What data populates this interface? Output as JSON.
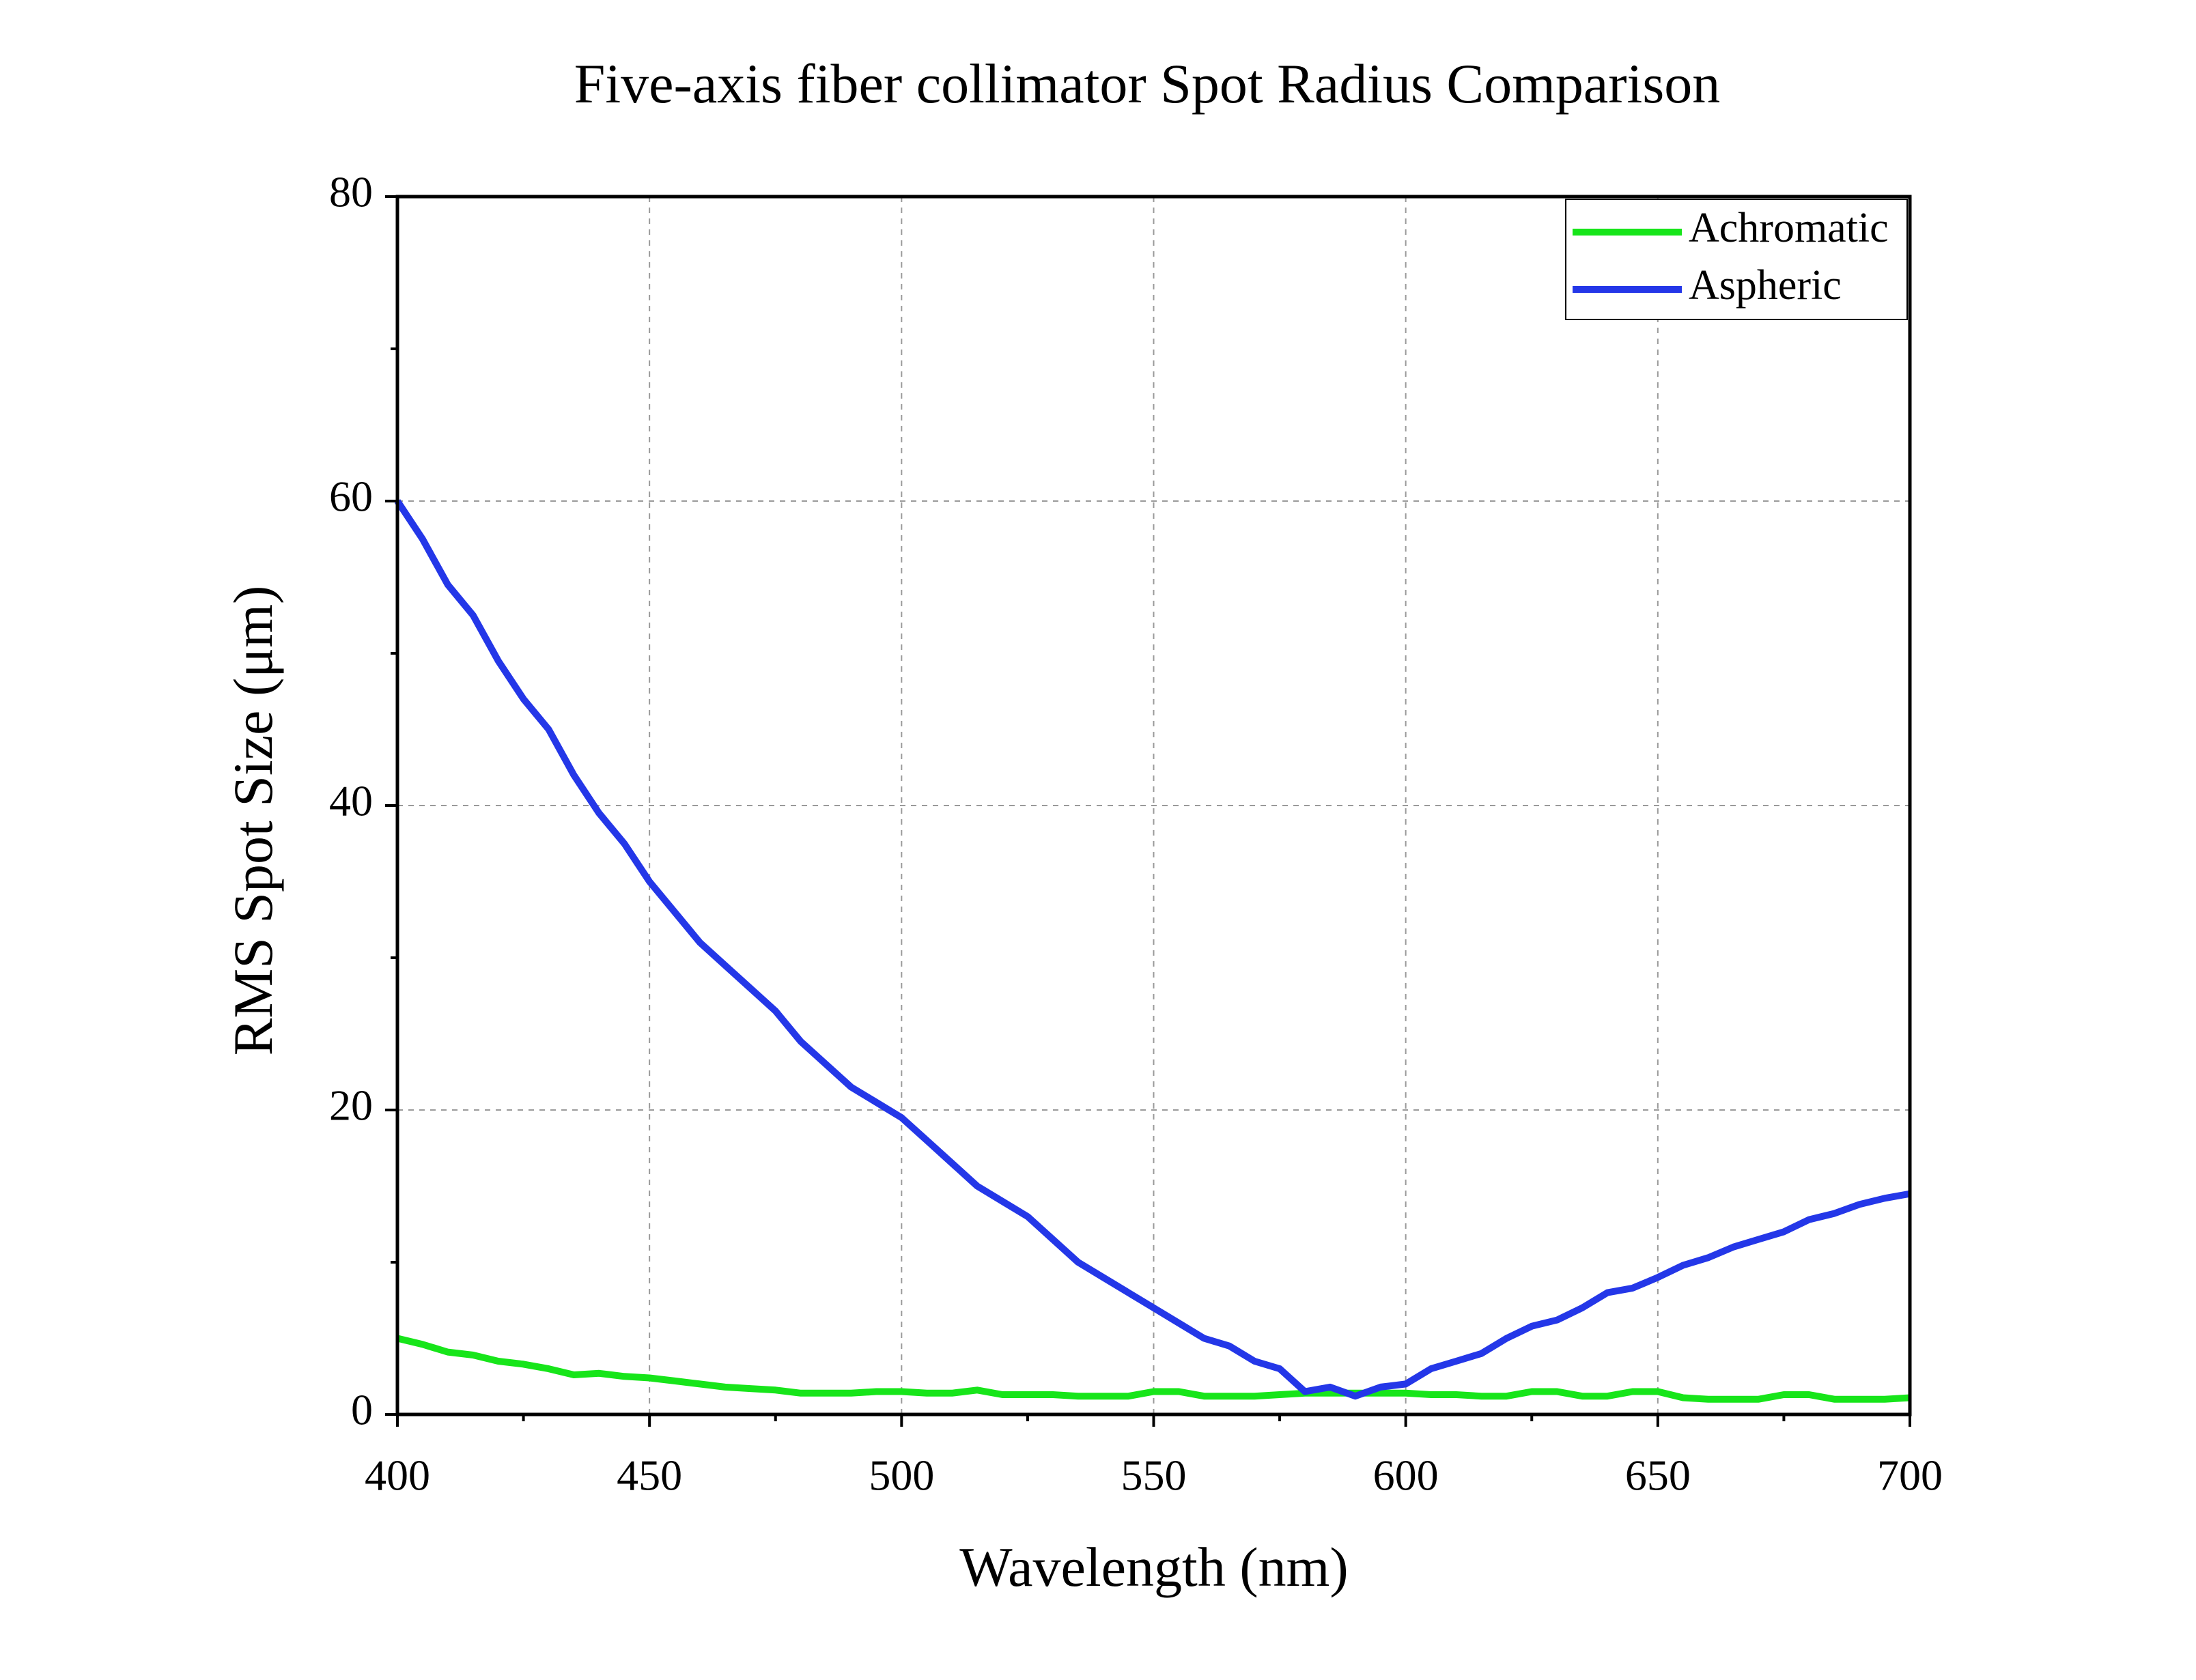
{
  "chart_data": {
    "type": "line",
    "title": "Five-axis fiber collimator Spot Radius Comparison",
    "xlabel": "Wavelength (nm)",
    "ylabel": "RMS Spot Size (μm)",
    "x": [
      400,
      405,
      410,
      415,
      420,
      425,
      430,
      435,
      440,
      445,
      450,
      455,
      460,
      465,
      470,
      475,
      480,
      485,
      490,
      495,
      500,
      505,
      510,
      515,
      520,
      525,
      530,
      535,
      540,
      545,
      550,
      555,
      560,
      565,
      570,
      575,
      580,
      585,
      590,
      595,
      600,
      605,
      610,
      615,
      620,
      625,
      630,
      635,
      640,
      645,
      650,
      655,
      660,
      665,
      670,
      675,
      680,
      685,
      690,
      695,
      700
    ],
    "series": [
      {
        "name": "Achromatic",
        "color": "#17e51a",
        "values": [
          5,
          4.6,
          4.1,
          3.9,
          3.5,
          3.3,
          3,
          2.6,
          2.7,
          2.5,
          2.4,
          2.2,
          2,
          1.8,
          1.7,
          1.6,
          1.4,
          1.4,
          1.4,
          1.5,
          1.5,
          1.4,
          1.4,
          1.6,
          1.3,
          1.3,
          1.3,
          1.2,
          1.2,
          1.2,
          1.5,
          1.5,
          1.2,
          1.2,
          1.2,
          1.3,
          1.4,
          1.4,
          1.4,
          1.4,
          1.4,
          1.3,
          1.3,
          1.2,
          1.2,
          1.5,
          1.5,
          1.2,
          1.2,
          1.5,
          1.5,
          1.1,
          1,
          1,
          1,
          1.3,
          1.3,
          1,
          1,
          1,
          1.1
        ]
      },
      {
        "name": "Aspheric",
        "color": "#2437e8",
        "values": [
          60,
          57.5,
          54.5,
          52.5,
          49.5,
          47,
          45,
          42,
          39.5,
          37.5,
          35,
          33,
          31,
          29.5,
          28,
          26.5,
          24.5,
          23,
          21.5,
          20.5,
          19.5,
          18,
          16.5,
          15,
          14,
          13,
          11.5,
          10,
          9,
          8,
          7,
          6,
          5,
          4.5,
          3.5,
          3,
          1.5,
          1.8,
          1.2,
          1.8,
          2,
          3,
          3.5,
          4,
          5,
          5.8,
          6.2,
          7,
          8,
          8.3,
          9,
          9.8,
          10.3,
          11,
          11.5,
          12,
          12.8,
          13.2,
          13.8,
          14.2,
          14.5
        ]
      }
    ],
    "xlim": [
      400,
      700
    ],
    "xticks": [
      400,
      450,
      500,
      550,
      600,
      650,
      700
    ],
    "ylim": [
      0,
      80
    ],
    "yticks": [
      0,
      20,
      40,
      60,
      80
    ],
    "grid": true,
    "legend": "upper right"
  }
}
